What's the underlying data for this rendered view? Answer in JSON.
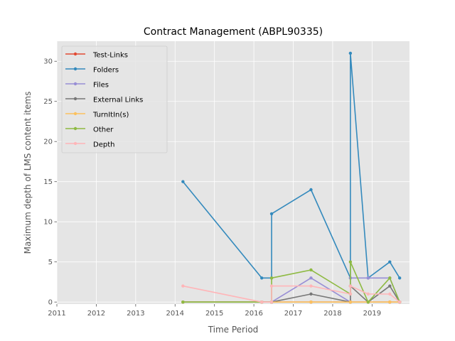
{
  "chart_data": {
    "type": "line",
    "title": "Contract Management (ABPL90335)",
    "xlabel": "Time Period",
    "ylabel": "Maximum depth of LMS content items",
    "xlim": [
      2011.0,
      2019.95
    ],
    "ylim": [
      -0.25,
      32.5
    ],
    "xticks": [
      2011,
      2012,
      2013,
      2014,
      2015,
      2016,
      2017,
      2018,
      2019
    ],
    "xtick_labels": [
      "2011",
      "2012",
      "2013",
      "2014",
      "2015",
      "2016",
      "2017",
      "2018",
      "2019"
    ],
    "yticks": [
      0,
      5,
      10,
      15,
      20,
      25,
      30
    ],
    "ytick_labels": [
      "0",
      "5",
      "10",
      "15",
      "20",
      "25",
      "30"
    ],
    "grid": true,
    "legend_position": "top-left",
    "x": [
      2014.2,
      2016.2,
      2016.45,
      2016.45,
      2017.45,
      2018.45,
      2018.45,
      2018.9,
      2019.45,
      2019.7
    ],
    "series": [
      {
        "name": "Test-Links",
        "color": "#E24A33",
        "values": [
          0,
          0,
          0,
          0,
          0,
          0,
          0,
          0,
          0,
          0
        ]
      },
      {
        "name": "Folders",
        "color": "#348ABD",
        "values": [
          15,
          3,
          3,
          11,
          14,
          3,
          31,
          3,
          5,
          3
        ]
      },
      {
        "name": "Files",
        "color": "#988ED5",
        "values": [
          0,
          0,
          0,
          0,
          3,
          0,
          3,
          3,
          3,
          0
        ]
      },
      {
        "name": "External Links",
        "color": "#777777",
        "values": [
          0,
          0,
          0,
          0,
          1,
          0,
          2,
          0,
          2,
          0
        ]
      },
      {
        "name": "TurnItIn(s)",
        "color": "#FBC15E",
        "values": [
          0,
          0,
          0,
          0,
          0,
          0,
          0,
          0,
          0,
          0
        ]
      },
      {
        "name": "Other",
        "color": "#8EBA42",
        "values": [
          0,
          0,
          0,
          3,
          4,
          1,
          5,
          0,
          3,
          0
        ]
      },
      {
        "name": "Depth",
        "color": "#FFB5B8",
        "values": [
          2,
          0,
          0,
          2,
          2,
          1,
          2,
          1,
          1,
          0
        ]
      }
    ]
  },
  "colors": {
    "plot_background": "#E5E5E5",
    "grid": "#FFFFFF"
  }
}
